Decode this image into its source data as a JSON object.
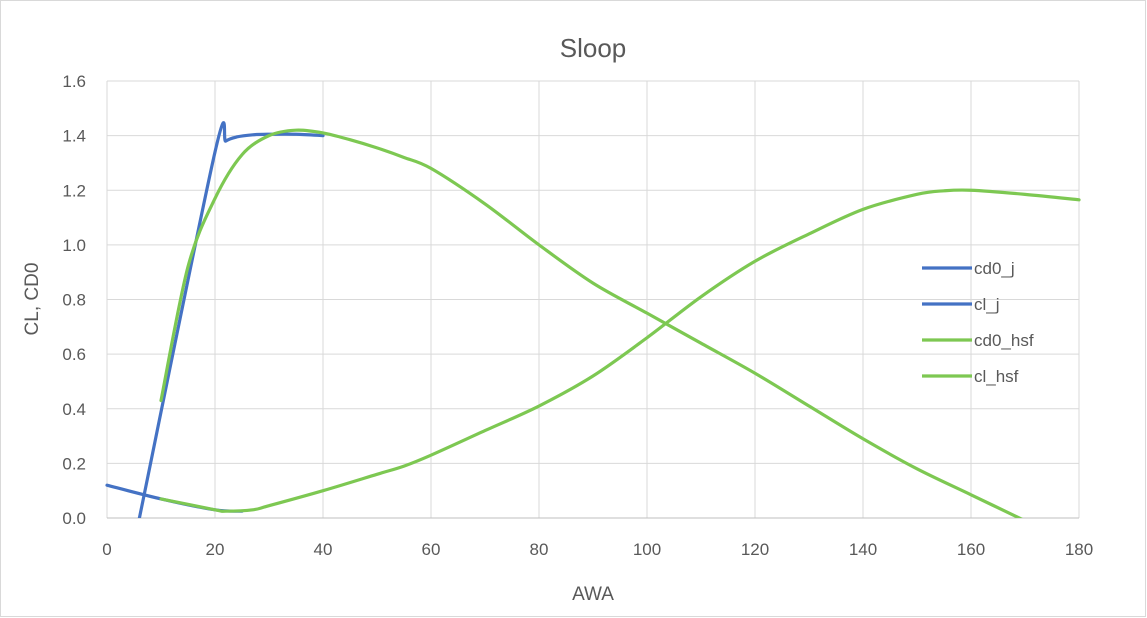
{
  "chart_data": {
    "type": "line",
    "title": "Sloop",
    "xlabel": "AWA",
    "ylabel": "CL, CD0",
    "xlim": [
      0,
      180
    ],
    "ylim": [
      0,
      1.6
    ],
    "xticks": [
      "0",
      "20",
      "40",
      "60",
      "80",
      "100",
      "120",
      "140",
      "160",
      "180"
    ],
    "yticks": [
      "0.0",
      "0.2",
      "0.4",
      "0.6",
      "0.8",
      "1.0",
      "1.2",
      "1.4",
      "1.6"
    ],
    "grid": true,
    "legend_position": "right",
    "series": [
      {
        "name": "cd0_j",
        "color": "#4472C4",
        "x": [
          0,
          10,
          20,
          25
        ],
        "y": [
          0.12,
          0.07,
          0.03,
          0.025
        ]
      },
      {
        "name": "cl_j",
        "color": "#4472C4",
        "x": [
          6,
          20,
          22,
          24,
          27,
          30,
          35,
          40
        ],
        "y": [
          0.0,
          1.34,
          1.38,
          1.395,
          1.403,
          1.405,
          1.405,
          1.4
        ]
      },
      {
        "name": "cd0_hsf",
        "color": "#7DC852",
        "x": [
          10,
          20,
          22,
          27,
          30,
          40,
          50,
          55,
          60,
          70,
          80,
          90,
          100,
          110,
          120,
          130,
          140,
          150,
          155,
          160,
          170,
          180
        ],
        "y": [
          0.07,
          0.03,
          0.025,
          0.03,
          0.045,
          0.1,
          0.16,
          0.19,
          0.23,
          0.32,
          0.41,
          0.52,
          0.66,
          0.81,
          0.94,
          1.04,
          1.13,
          1.185,
          1.198,
          1.2,
          1.185,
          1.165
        ]
      },
      {
        "name": "cl_hsf",
        "color": "#7DC852",
        "x": [
          10,
          15,
          20,
          25,
          30,
          35,
          40,
          45,
          50,
          55,
          60,
          70,
          80,
          90,
          100,
          110,
          120,
          130,
          140,
          150,
          160,
          170
        ],
        "y": [
          0.43,
          0.92,
          1.17,
          1.33,
          1.4,
          1.42,
          1.41,
          1.385,
          1.355,
          1.32,
          1.28,
          1.15,
          1.0,
          0.86,
          0.75,
          0.64,
          0.53,
          0.41,
          0.29,
          0.18,
          0.085,
          -0.01
        ]
      }
    ]
  }
}
